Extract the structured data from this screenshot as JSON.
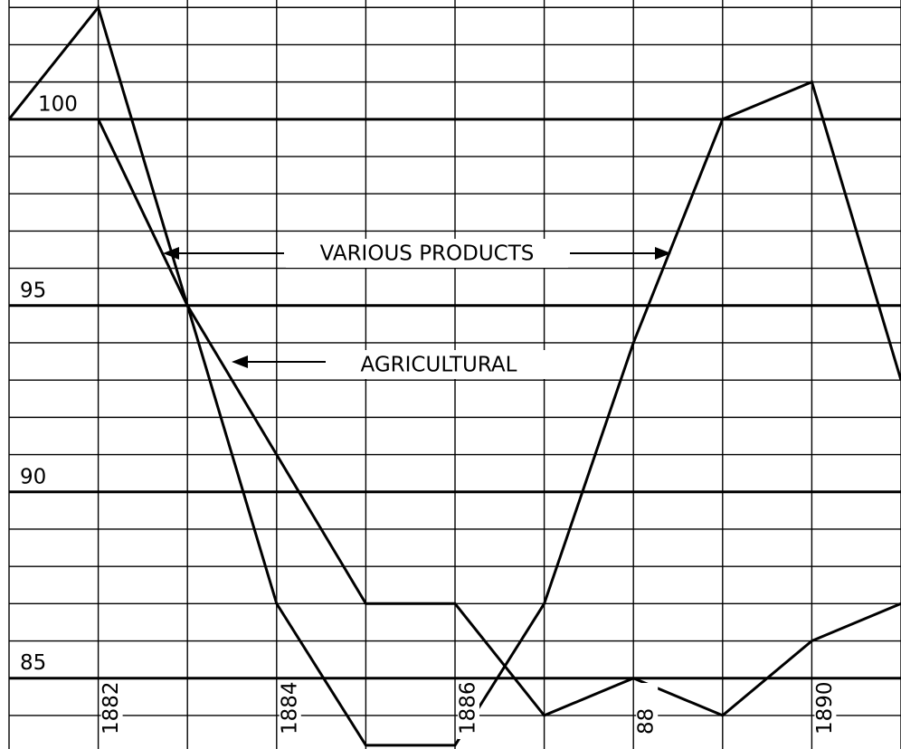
{
  "chart_data": {
    "type": "line",
    "categories": [
      null,
      "1882",
      null,
      "1884",
      null,
      "1886",
      null,
      "88",
      null,
      "1890",
      null
    ],
    "series": [
      {
        "name": "VARIOUS PRODUCTS",
        "color": "#000000",
        "values": [
          null,
          100,
          95,
          87,
          83.2,
          83.2,
          87,
          94,
          100,
          101,
          93
        ]
      },
      {
        "name": "AGRICULTURAL",
        "color": "#000000",
        "values": [
          100,
          103,
          95,
          91,
          87,
          87,
          84,
          85,
          84,
          86,
          87
        ]
      }
    ],
    "ylim": [
      83.1,
      103.2
    ],
    "yticks": [
      85,
      90,
      95,
      100
    ],
    "ygrid": [
      84,
      85,
      86,
      87,
      88,
      89,
      90,
      91,
      92,
      93,
      94,
      95,
      96,
      97,
      98,
      99,
      100,
      101,
      102,
      103
    ],
    "grid": true
  }
}
